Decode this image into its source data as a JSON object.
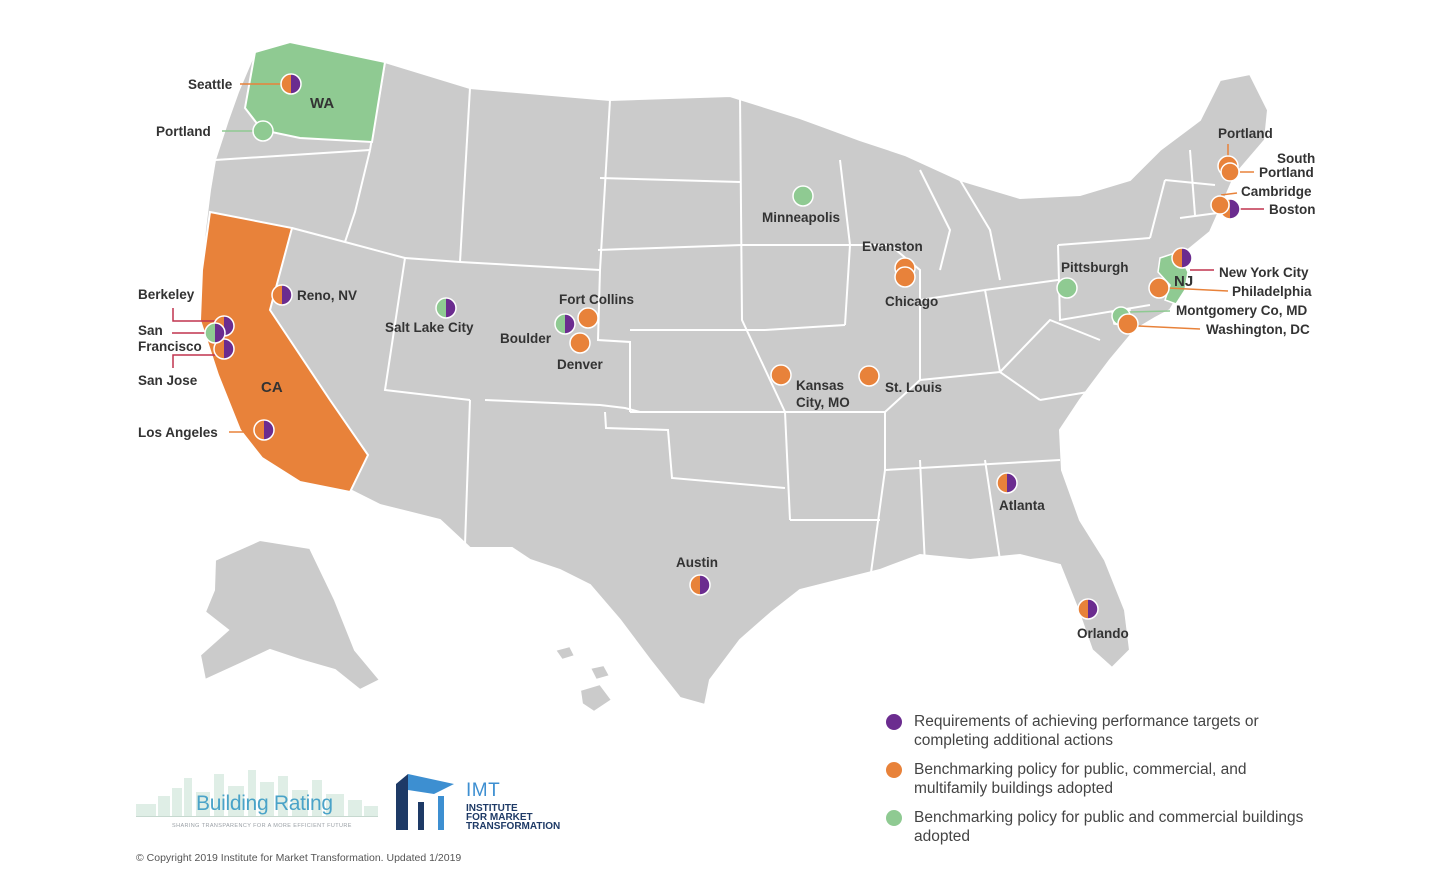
{
  "legend": {
    "requirements": "Requirements of achieving performance targets or completing additional actions",
    "benchmarking_multifamily": "Benchmarking policy for public, commercial, and multifamily buildings adopted",
    "benchmarking_public_commercial": "Benchmarking policy for public and commercial buildings adopted"
  },
  "colors": {
    "requirements": "#6b2c8f",
    "benchmarking_multifamily": "#e8823a",
    "benchmarking_public_commercial": "#8fca92",
    "land": "#cbcbcb",
    "state_border": "#ffffff"
  },
  "states": {
    "wa": "WA",
    "ca": "CA",
    "nj": "NJ"
  },
  "cities": {
    "seattle": "Seattle",
    "portland_or": "Portland",
    "berkeley": "Berkeley",
    "san": "San",
    "francisco": "Francisco",
    "san_jose": "San Jose",
    "los_angeles": "Los Angeles",
    "reno": "Reno, NV",
    "salt_lake_city": "Salt Lake City",
    "fort_collins": "Fort Collins",
    "boulder": "Boulder",
    "denver": "Denver",
    "minneapolis": "Minneapolis",
    "evanston": "Evanston",
    "chicago": "Chicago",
    "kansas": "Kansas",
    "city_mo": "City, MO",
    "st_louis": "St. Louis",
    "pittsburgh": "Pittsburgh",
    "atlanta": "Atlanta",
    "austin": "Austin",
    "orlando": "Orlando",
    "portland_me": "Portland",
    "south": "South",
    "portland_south": "Portland",
    "cambridge": "Cambridge",
    "boston": "Boston",
    "new_york_city": "New York City",
    "philadelphia": "Philadelphia",
    "montgomery": "Montgomery Co, MD",
    "washington_dc": "Washington, DC"
  },
  "logos": {
    "building_rating_title": "Building Rating",
    "building_rating_tagline": "SHARING TRANSPARENCY FOR A MORE EFFICIENT FUTURE",
    "imt_abbr": "IMT",
    "imt_line1": "INSTITUTE",
    "imt_line2": "FOR MARKET",
    "imt_line3": "TRANSFORMATION"
  },
  "copyright": "© Copyright 2019 Institute for Market Transformation. Updated 1/2019"
}
